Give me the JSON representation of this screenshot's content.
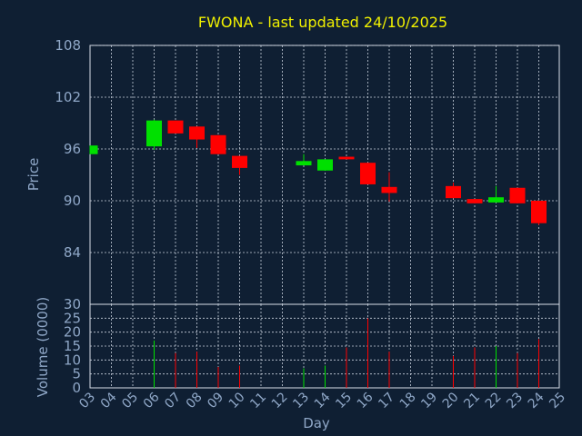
{
  "chart_data": [
    {
      "type": "candlestick",
      "title": "FWONA - last updated 24/10/2025",
      "ylabel": "Price",
      "ylim": [
        78,
        108
      ],
      "yticks": [
        108,
        102,
        96,
        90,
        84
      ],
      "grid": true,
      "colors": {
        "up": "#00e000",
        "down": "#ff0000",
        "background": "#0f1f33",
        "text": "#8fa7c7",
        "title": "#f0f000"
      },
      "candles": [
        {
          "day": "03",
          "open": 95.4,
          "close": 96.4,
          "high": 96.4,
          "low": 95.4
        },
        {
          "day": "06",
          "open": 96.3,
          "close": 99.3,
          "high": 99.4,
          "low": 95.9
        },
        {
          "day": "07",
          "open": 99.3,
          "close": 97.8,
          "high": 99.3,
          "low": 97.8
        },
        {
          "day": "08",
          "open": 98.6,
          "close": 97.1,
          "high": 98.6,
          "low": 96.1
        },
        {
          "day": "09",
          "open": 97.6,
          "close": 95.4,
          "high": 97.6,
          "low": 95.4
        },
        {
          "day": "10",
          "open": 95.2,
          "close": 93.8,
          "high": 95.2,
          "low": 93.0
        },
        {
          "day": "13",
          "open": 94.1,
          "close": 94.6,
          "high": 95.4,
          "low": 94.1
        },
        {
          "day": "14",
          "open": 93.5,
          "close": 94.8,
          "high": 94.8,
          "low": 93.5
        },
        {
          "day": "15",
          "open": 95.1,
          "close": 94.8,
          "high": 95.1,
          "low": 94.8
        },
        {
          "day": "16",
          "open": 94.4,
          "close": 91.9,
          "high": 94.4,
          "low": 91.9
        },
        {
          "day": "17",
          "open": 91.6,
          "close": 90.9,
          "high": 93.3,
          "low": 89.9
        },
        {
          "day": "20",
          "open": 91.7,
          "close": 90.3,
          "high": 92.1,
          "low": 90.3
        },
        {
          "day": "21",
          "open": 90.2,
          "close": 89.7,
          "high": 90.2,
          "low": 89.7
        },
        {
          "day": "22",
          "open": 89.8,
          "close": 90.4,
          "high": 91.7,
          "low": 89.8
        },
        {
          "day": "23",
          "open": 91.5,
          "close": 89.7,
          "high": 91.5,
          "low": 89.7
        },
        {
          "day": "24",
          "open": 90.0,
          "close": 87.4,
          "high": 90.0,
          "low": 87.2
        }
      ]
    },
    {
      "type": "bar",
      "ylabel": "Volume (0000)",
      "xlabel": "Day",
      "ylim": [
        0,
        30
      ],
      "yticks": [
        30,
        25,
        20,
        15,
        10,
        5,
        0
      ],
      "grid": true,
      "categories": [
        "03",
        "04",
        "05",
        "06",
        "07",
        "08",
        "09",
        "10",
        "11",
        "12",
        "13",
        "14",
        "15",
        "16",
        "17",
        "18",
        "19",
        "20",
        "21",
        "22",
        "23",
        "24",
        "25"
      ],
      "volumes": [
        {
          "day": "06",
          "value": 17,
          "direction": "up"
        },
        {
          "day": "07",
          "value": 12.5,
          "direction": "down"
        },
        {
          "day": "08",
          "value": 13,
          "direction": "down"
        },
        {
          "day": "09",
          "value": 7.5,
          "direction": "down"
        },
        {
          "day": "10",
          "value": 8,
          "direction": "down"
        },
        {
          "day": "13",
          "value": 7,
          "direction": "up"
        },
        {
          "day": "14",
          "value": 8,
          "direction": "up"
        },
        {
          "day": "15",
          "value": 14.5,
          "direction": "down"
        },
        {
          "day": "16",
          "value": 25,
          "direction": "down"
        },
        {
          "day": "17",
          "value": 13,
          "direction": "down"
        },
        {
          "day": "20",
          "value": 11.5,
          "direction": "down"
        },
        {
          "day": "21",
          "value": 14.5,
          "direction": "down"
        },
        {
          "day": "22",
          "value": 15,
          "direction": "up"
        },
        {
          "day": "23",
          "value": 12.5,
          "direction": "down"
        },
        {
          "day": "24",
          "value": 17.5,
          "direction": "down"
        }
      ]
    }
  ]
}
